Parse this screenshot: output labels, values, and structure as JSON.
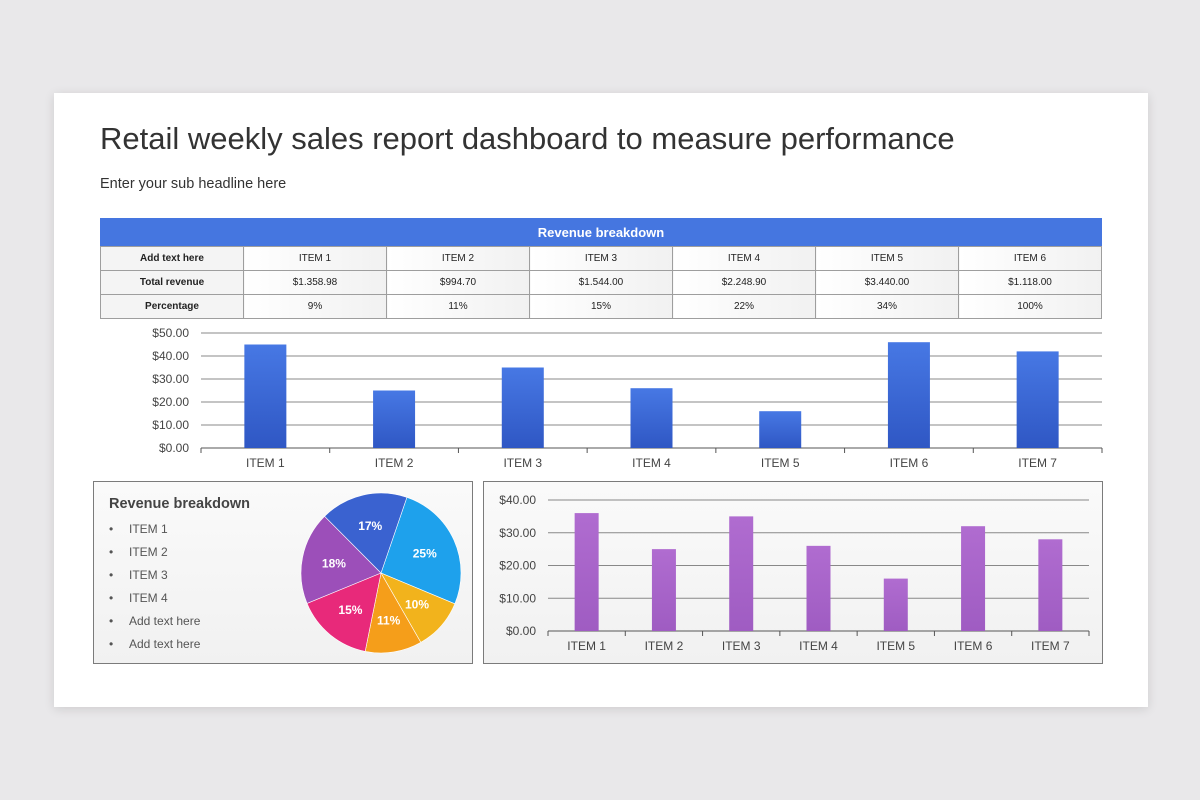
{
  "title": "Retail weekly sales report dashboard to measure performance",
  "subtitle": "Enter your sub headline here",
  "table": {
    "header": "Revenue breakdown",
    "columns": [
      "Add text here",
      "ITEM 1",
      "ITEM 2",
      "ITEM 3",
      "ITEM 4",
      "ITEM 5",
      "ITEM 6"
    ],
    "rows": [
      {
        "label": "Total revenue",
        "cells": [
          "$1.358.98",
          "$994.70",
          "$1.544.00",
          "$2.248.90",
          "$3.440.00",
          "$1.118.00"
        ]
      },
      {
        "label": "Percentage",
        "cells": [
          "9%",
          "11%",
          "15%",
          "22%",
          "34%",
          "100%"
        ]
      }
    ]
  },
  "legend": {
    "title": "Revenue breakdown",
    "items": [
      "ITEM 1",
      "ITEM 2",
      "ITEM 3",
      "ITEM 4",
      "Add text here",
      "Add text here"
    ]
  },
  "colors": {
    "accent_blue": "#4576e0",
    "bar_blue": "#3d68d8",
    "bar_purple": "#a865c9",
    "pie_slices": [
      "#1ea1ec",
      "#f2b31c",
      "#f59e1a",
      "#e8297a",
      "#9c4fb9",
      "#3a62d0"
    ]
  },
  "chart_data": [
    {
      "type": "bar",
      "categories": [
        "ITEM 1",
        "ITEM 2",
        "ITEM 3",
        "ITEM 4",
        "ITEM 5",
        "ITEM 6",
        "ITEM 7"
      ],
      "values": [
        45,
        25,
        35,
        26,
        16,
        46,
        42
      ],
      "yticks": [
        "$0.00",
        "$10.00",
        "$20.00",
        "$30.00",
        "$40.00",
        "$50.00"
      ],
      "ylim": [
        0,
        50
      ],
      "grid": true
    },
    {
      "type": "pie",
      "labels": [
        "25%",
        "10%",
        "11%",
        "15%",
        "18%",
        "17%"
      ],
      "values": [
        25,
        10,
        11,
        15,
        18,
        17
      ]
    },
    {
      "type": "bar",
      "categories": [
        "ITEM 1",
        "ITEM 2",
        "ITEM 3",
        "ITEM 4",
        "ITEM 5",
        "ITEM 6",
        "ITEM 7"
      ],
      "values": [
        36,
        25,
        35,
        26,
        16,
        32,
        28
      ],
      "yticks": [
        "$0.00",
        "$10.00",
        "$20.00",
        "$30.00",
        "$40.00"
      ],
      "ylim": [
        0,
        40
      ],
      "grid": true
    }
  ]
}
